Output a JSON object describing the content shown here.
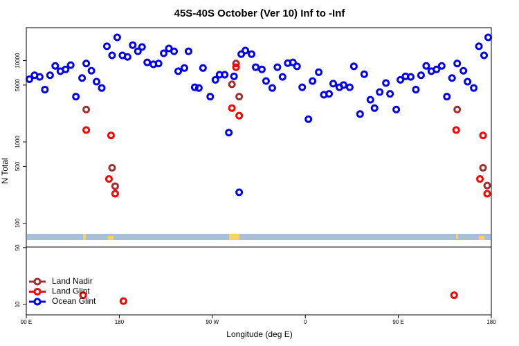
{
  "chart_data": {
    "type": "scatter",
    "title": "45S-40S October (Ver 10)   Inf to -Inf",
    "x_label": "Longitude (deg E)",
    "y_label": "N Total",
    "log_y": true,
    "legend": "lower left",
    "xlim": [
      90,
      540
    ],
    "xticks": [
      {
        "value": 90,
        "label": "90 E"
      },
      180,
      {
        "value": 270,
        "label": "90 W"
      },
      {
        "value": 360,
        "label": "0"
      },
      {
        "value": 450,
        "label": "90 E"
      },
      {
        "value": 540,
        "label": "180"
      }
    ],
    "ylim": [
      7.45,
      25400
    ],
    "yticks": [
      10,
      50,
      100,
      500,
      1000,
      5000,
      10000
    ],
    "series": [
      {
        "name": "Land Nadir",
        "color": "#a03030",
        "x": [
          148,
          173,
          176,
          293,
          289,
          296,
          507,
          532,
          536
        ],
        "values": [
          2500,
          480,
          285,
          9200,
          5100,
          3600,
          2500,
          480,
          290
        ]
      },
      {
        "name": "Land Glint",
        "color": "#ff0000",
        "x": [
          148,
          172,
          170,
          176,
          293,
          289,
          296,
          145,
          184,
          506,
          532,
          529,
          536,
          504
        ],
        "values": [
          1400,
          1200,
          350,
          230,
          8300,
          2600,
          2100,
          13,
          11,
          1400,
          1200,
          350,
          230,
          13
        ]
      },
      {
        "name": "Ocean Glint",
        "color": "#0000ee",
        "x": [
          93,
          98,
          103,
          108,
          113,
          118,
          123,
          128,
          133,
          138,
          144,
          148,
          153,
          158,
          163,
          168,
          173,
          178,
          183,
          188,
          193,
          198,
          202,
          207,
          213,
          218,
          223,
          228,
          233,
          237,
          243,
          247,
          253,
          257,
          261,
          268,
          273,
          277,
          282,
          286,
          291,
          296,
          298,
          302,
          308,
          312,
          318,
          322,
          328,
          333,
          338,
          343,
          348,
          352,
          357,
          363,
          367,
          373,
          378,
          383,
          387,
          393,
          397,
          403,
          407,
          413,
          417,
          423,
          427,
          432,
          438,
          442,
          448,
          452,
          457,
          462,
          467,
          472,
          477,
          482,
          487,
          492,
          497,
          502,
          507,
          513,
          517,
          523,
          528,
          533,
          537
        ],
        "values": [
          5900,
          6600,
          6300,
          4400,
          6600,
          8600,
          7400,
          7800,
          8800,
          3600,
          6100,
          9200,
          7500,
          5500,
          4600,
          15000,
          11600,
          19300,
          11600,
          11100,
          15500,
          13000,
          14700,
          9500,
          9000,
          9200,
          12300,
          14100,
          13000,
          7400,
          8100,
          13000,
          4700,
          4600,
          8100,
          3600,
          5800,
          6700,
          6700,
          1300,
          6400,
          240,
          12000,
          13300,
          12000,
          8300,
          7800,
          5600,
          4600,
          8300,
          6300,
          9300,
          9500,
          8500,
          4700,
          1900,
          5600,
          7200,
          3800,
          3900,
          5200,
          4700,
          5000,
          4700,
          8500,
          2200,
          6800,
          3300,
          2600,
          4100,
          5300,
          3900,
          2500,
          5800,
          6400,
          6300,
          4400,
          6600,
          8600,
          7400,
          7800,
          8600,
          3600,
          6100,
          9200,
          7500,
          5500,
          4600,
          15000,
          11600,
          19300
        ]
      }
    ]
  }
}
